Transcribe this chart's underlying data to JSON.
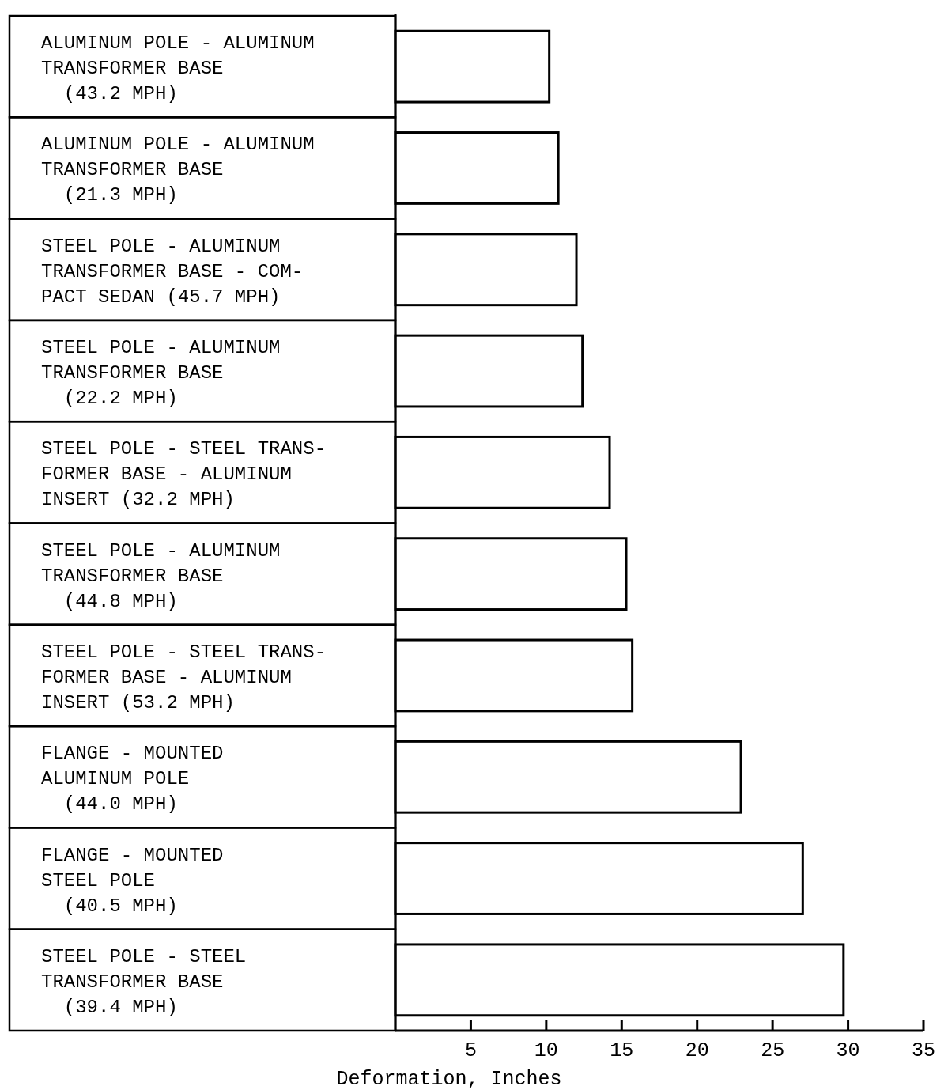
{
  "chart_data": {
    "type": "bar",
    "orientation": "horizontal",
    "xlabel": "Deformation, Inches",
    "categories": [
      "ALUMINUM POLE - ALUMINUM\nTRANSFORMER BASE\n  (43.2 MPH)",
      "ALUMINUM POLE - ALUMINUM\nTRANSFORMER BASE\n  (21.3 MPH)",
      "STEEL POLE - ALUMINUM\nTRANSFORMER BASE - COM-\nPACT SEDAN (45.7 MPH)",
      "STEEL POLE - ALUMINUM\nTRANSFORMER BASE\n  (22.2 MPH)",
      "STEEL POLE - STEEL TRANS-\nFORMER BASE - ALUMINUM\nINSERT (32.2 MPH)",
      "STEEL POLE - ALUMINUM\nTRANSFORMER BASE\n  (44.8 MPH)",
      "STEEL POLE - STEEL TRANS-\nFORMER BASE - ALUMINUM\nINSERT (53.2 MPH)",
      "FLANGE - MOUNTED\nALUMINUM POLE\n  (44.0 MPH)",
      "FLANGE - MOUNTED\nSTEEL POLE\n  (40.5 MPH)",
      "STEEL POLE - STEEL\nTRANSFORMER BASE\n  (39.4 MPH)"
    ],
    "values": [
      10.2,
      10.8,
      12.0,
      12.4,
      14.2,
      15.3,
      15.7,
      22.9,
      27.0,
      29.7
    ],
    "color": "#ffffff",
    "xlim": [
      0,
      35
    ],
    "xticks": [
      5,
      10,
      15,
      20,
      25,
      30,
      35
    ],
    "grid": false
  }
}
